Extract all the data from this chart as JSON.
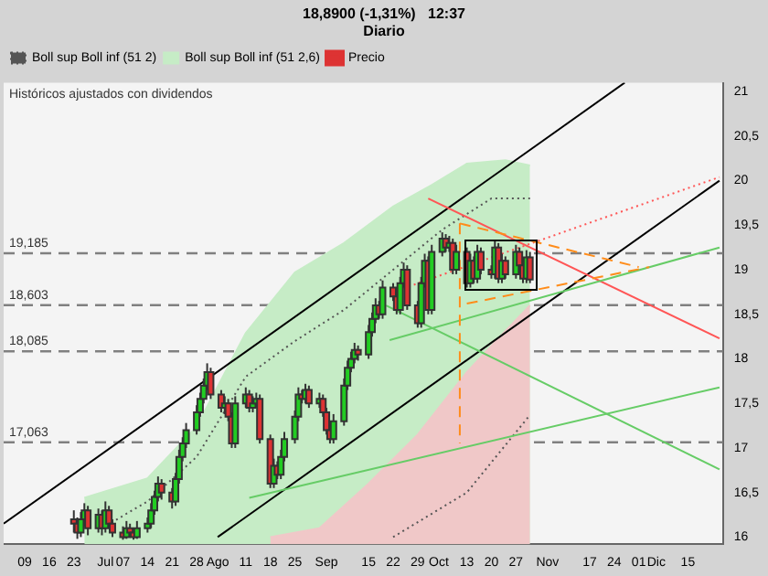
{
  "chart_data": {
    "type": "candlestick",
    "title": "18,8900 (-1,31%)   12:37",
    "subtitle": "Diario",
    "annotations": [
      "Históricos ajustados con dividendos"
    ],
    "legend": "top left",
    "grid": false,
    "xlim": [
      "--06-03",
      "--12-25"
    ],
    "xticks": [
      {
        "value": "--06-09",
        "label": "09"
      },
      {
        "value": "--06-16",
        "label": "16"
      },
      {
        "value": "--06-23",
        "label": "23"
      },
      {
        "value": "--07-02",
        "label": "Jul"
      },
      {
        "value": "--07-07",
        "label": "07"
      },
      {
        "value": "--07-14",
        "label": "14"
      },
      {
        "value": "--07-21",
        "label": "21"
      },
      {
        "value": "--07-28",
        "label": "28"
      },
      {
        "value": "--08-03",
        "label": "Ago"
      },
      {
        "value": "--08-11",
        "label": "11"
      },
      {
        "value": "--08-18",
        "label": "18"
      },
      {
        "value": "--08-25",
        "label": "25"
      },
      {
        "value": "--09-03",
        "label": "Sep"
      },
      {
        "value": "--09-15",
        "label": "15"
      },
      {
        "value": "--09-22",
        "label": "22"
      },
      {
        "value": "--09-29",
        "label": "29"
      },
      {
        "value": "--10-05",
        "label": "Oct"
      },
      {
        "value": "--10-13",
        "label": "13"
      },
      {
        "value": "--10-20",
        "label": "20"
      },
      {
        "value": "--10-27",
        "label": "27"
      },
      {
        "value": "--11-05",
        "label": "Nov"
      },
      {
        "value": "--11-17",
        "label": "17"
      },
      {
        "value": "--11-24",
        "label": "24"
      },
      {
        "value": "--12-01",
        "label": "01"
      },
      {
        "value": "--12-06",
        "label": "Dic"
      },
      {
        "value": "--12-15",
        "label": "15"
      }
    ],
    "ylim": [
      15.92,
      21.1
    ],
    "yticks": [
      16,
      {
        "value": 16.5,
        "label": "16,5"
      },
      17,
      {
        "value": 17.5,
        "label": "17,5"
      },
      18,
      {
        "value": 18.5,
        "label": "18,5"
      },
      19,
      {
        "value": 19.5,
        "label": "19,5"
      },
      20,
      {
        "value": 20.5,
        "label": "20,5"
      },
      21
    ],
    "ref_lines": [
      {
        "axis": "y",
        "value": 19.185,
        "label": "19,185",
        "color": "#808080",
        "line_style": "dashed"
      },
      {
        "axis": "y",
        "value": 18.603,
        "label": "18,603",
        "color": "#808080",
        "line_style": "dashed"
      },
      {
        "axis": "y",
        "value": 18.085,
        "label": "18,085",
        "color": "#808080",
        "line_style": "dashed"
      },
      {
        "axis": "y",
        "value": 17.063,
        "label": "17,063",
        "color": "#808080",
        "line_style": "dashed"
      }
    ],
    "series": [
      {
        "name": "Precio",
        "x": [
          "--06-23",
          "--06-24",
          "--06-25",
          "--06-26",
          "--06-27",
          "--06-30",
          "--07-01",
          "--07-02",
          "--07-03",
          "--07-04",
          "--07-07",
          "--07-08",
          "--07-09",
          "--07-10",
          "--07-11",
          "--07-14",
          "--07-15",
          "--07-16",
          "--07-17",
          "--07-18",
          "--07-21",
          "--07-22",
          "--07-23",
          "--07-24",
          "--07-25",
          "--07-28",
          "--07-29",
          "--07-30",
          "--07-31",
          "--08-01",
          "--08-04",
          "--08-05",
          "--08-06",
          "--08-07",
          "--08-08",
          "--08-11",
          "--08-12",
          "--08-13",
          "--08-14",
          "--08-15",
          "--08-18",
          "--08-19",
          "--08-20",
          "--08-21",
          "--08-22",
          "--08-25",
          "--08-26",
          "--08-27",
          "--08-28",
          "--08-29",
          "--09-01",
          "--09-02",
          "--09-03",
          "--09-04",
          "--09-05",
          "--09-08",
          "--09-09",
          "--09-10",
          "--09-11",
          "--09-12",
          "--09-15",
          "--09-16",
          "--09-17",
          "--09-18",
          "--09-19",
          "--09-22",
          "--09-23",
          "--09-24",
          "--09-25",
          "--09-26",
          "--09-29",
          "--09-30",
          "--10-01",
          "--10-02",
          "--10-03",
          "--10-06",
          "--10-07",
          "--10-08",
          "--10-09",
          "--10-10",
          "--10-13",
          "--10-14",
          "--10-15",
          "--10-16",
          "--10-17",
          "--10-20",
          "--10-21",
          "--10-22",
          "--10-23",
          "--10-24",
          "--10-27",
          "--10-28",
          "--10-29",
          "--10-30",
          "--10-31"
        ],
        "ohlc": [
          [
            16.2,
            16.3,
            16.05,
            16.15
          ],
          [
            16.15,
            16.22,
            15.98,
            16.05
          ],
          [
            16.05,
            16.28,
            16.0,
            16.2
          ],
          [
            16.2,
            16.38,
            16.12,
            16.3
          ],
          [
            16.3,
            16.35,
            16.02,
            16.1
          ],
          [
            16.1,
            16.32,
            16.05,
            16.25
          ],
          [
            16.25,
            16.3,
            16.02,
            16.1
          ],
          [
            16.1,
            16.4,
            16.05,
            16.3
          ],
          [
            16.3,
            16.35,
            16.1,
            16.15
          ],
          [
            16.15,
            16.2,
            16.0,
            16.05
          ],
          [
            16.05,
            16.12,
            15.97,
            16.0
          ],
          [
            16.0,
            16.18,
            15.98,
            16.1
          ],
          [
            16.1,
            16.15,
            16.0,
            16.05
          ],
          [
            16.05,
            16.1,
            15.97,
            16.0
          ],
          [
            16.0,
            16.18,
            15.98,
            16.1
          ],
          [
            16.1,
            16.22,
            16.05,
            16.15
          ],
          [
            16.15,
            16.38,
            16.1,
            16.3
          ],
          [
            16.3,
            16.52,
            16.25,
            16.45
          ],
          [
            16.45,
            16.68,
            16.4,
            16.6
          ],
          [
            16.6,
            16.65,
            16.42,
            16.5
          ],
          [
            16.5,
            16.55,
            16.32,
            16.4
          ],
          [
            16.4,
            16.72,
            16.35,
            16.65
          ],
          [
            16.65,
            16.98,
            16.6,
            16.9
          ],
          [
            16.9,
            17.12,
            16.85,
            17.05
          ],
          [
            17.05,
            17.28,
            17.0,
            17.2
          ],
          [
            17.2,
            17.48,
            17.15,
            17.4
          ],
          [
            17.4,
            17.62,
            17.35,
            17.55
          ],
          [
            17.55,
            17.78,
            17.5,
            17.7
          ],
          [
            17.7,
            17.95,
            17.65,
            17.85
          ],
          [
            17.85,
            17.9,
            17.55,
            17.6
          ],
          [
            17.6,
            17.65,
            17.4,
            17.45
          ],
          [
            17.45,
            17.58,
            17.38,
            17.5
          ],
          [
            17.5,
            17.55,
            17.3,
            17.35
          ],
          [
            17.35,
            17.4,
            17.0,
            17.05
          ],
          [
            17.05,
            17.58,
            17.0,
            17.5
          ],
          [
            17.5,
            17.68,
            17.45,
            17.6
          ],
          [
            17.6,
            17.65,
            17.4,
            17.45
          ],
          [
            17.45,
            17.58,
            17.4,
            17.5
          ],
          [
            17.5,
            17.62,
            17.45,
            17.55
          ],
          [
            17.55,
            17.6,
            17.05,
            17.1
          ],
          [
            17.1,
            17.15,
            16.55,
            16.6
          ],
          [
            16.6,
            16.88,
            16.55,
            16.8
          ],
          [
            16.8,
            16.85,
            16.65,
            16.7
          ],
          [
            16.7,
            16.98,
            16.65,
            16.9
          ],
          [
            16.9,
            17.18,
            16.85,
            17.1
          ],
          [
            17.1,
            17.42,
            17.05,
            17.35
          ],
          [
            17.35,
            17.68,
            17.3,
            17.6
          ],
          [
            17.6,
            17.65,
            17.5,
            17.55
          ],
          [
            17.55,
            17.72,
            17.5,
            17.65
          ],
          [
            17.65,
            17.7,
            17.45,
            17.5
          ],
          [
            17.5,
            17.62,
            17.45,
            17.55
          ],
          [
            17.55,
            17.6,
            17.35,
            17.4
          ],
          [
            17.4,
            17.45,
            17.15,
            17.2
          ],
          [
            17.2,
            17.25,
            17.05,
            17.1
          ],
          [
            17.1,
            17.38,
            17.05,
            17.3
          ],
          [
            17.3,
            17.78,
            17.25,
            17.7
          ],
          [
            17.7,
            17.98,
            17.65,
            17.9
          ],
          [
            17.9,
            18.08,
            17.85,
            18.0
          ],
          [
            18.0,
            18.18,
            17.95,
            18.1
          ],
          [
            18.1,
            18.15,
            17.98,
            18.05
          ],
          [
            18.05,
            18.38,
            18.0,
            18.3
          ],
          [
            18.3,
            18.52,
            18.25,
            18.45
          ],
          [
            18.45,
            18.68,
            18.4,
            18.6
          ],
          [
            18.6,
            18.65,
            18.45,
            18.5
          ],
          [
            18.5,
            18.88,
            18.45,
            18.8
          ],
          [
            18.8,
            18.85,
            18.65,
            18.7
          ],
          [
            18.7,
            18.75,
            18.5,
            18.55
          ],
          [
            18.55,
            18.92,
            18.5,
            18.85
          ],
          [
            18.85,
            19.08,
            18.8,
            19.0
          ],
          [
            19.0,
            19.05,
            18.55,
            18.6
          ],
          [
            18.6,
            18.65,
            18.35,
            18.4
          ],
          [
            18.4,
            18.92,
            18.35,
            18.85
          ],
          [
            18.85,
            19.18,
            18.8,
            19.1
          ],
          [
            19.1,
            19.15,
            18.5,
            18.55
          ],
          [
            18.55,
            19.28,
            18.5,
            19.2
          ],
          [
            19.2,
            19.42,
            19.15,
            19.35
          ],
          [
            19.35,
            19.4,
            19.2,
            19.25
          ],
          [
            19.25,
            19.38,
            19.2,
            19.3
          ],
          [
            19.3,
            19.35,
            18.95,
            19.0
          ],
          [
            19.0,
            19.28,
            18.95,
            19.2
          ],
          [
            19.2,
            19.25,
            18.8,
            18.85
          ],
          [
            18.85,
            19.18,
            18.8,
            19.1
          ],
          [
            19.1,
            19.15,
            18.85,
            18.9
          ],
          [
            18.9,
            19.28,
            18.85,
            19.2
          ],
          [
            19.2,
            19.25,
            18.95,
            19.0
          ],
          [
            19.0,
            19.05,
            18.9,
            18.95
          ],
          [
            18.95,
            19.32,
            18.9,
            19.25
          ],
          [
            19.25,
            19.3,
            18.85,
            18.9
          ],
          [
            18.9,
            19.18,
            18.85,
            19.1
          ],
          [
            19.1,
            19.15,
            18.9,
            18.95
          ],
          [
            18.95,
            19.28,
            18.9,
            19.2
          ],
          [
            19.2,
            19.25,
            19.0,
            19.05
          ],
          [
            19.05,
            19.1,
            18.85,
            18.9
          ],
          [
            18.9,
            19.22,
            18.85,
            19.14
          ],
          [
            19.14,
            19.2,
            18.85,
            18.89
          ]
        ],
        "colors": [
          "#dd3333",
          "#dd3333",
          "#22cc22",
          "#22cc22",
          "#dd3333",
          "#22cc22",
          "#dd3333",
          "#22cc22",
          "#dd3333",
          "#dd3333",
          "#dd3333",
          "#22cc22",
          "#dd3333",
          "#dd3333",
          "#22cc22",
          "#22cc22",
          "#22cc22",
          "#22cc22",
          "#22cc22",
          "#dd3333",
          "#dd3333",
          "#22cc22",
          "#22cc22",
          "#22cc22",
          "#22cc22",
          "#22cc22",
          "#22cc22",
          "#22cc22",
          "#22cc22",
          "#dd3333",
          "#dd3333",
          "#22cc22",
          "#dd3333",
          "#dd3333",
          "#22cc22",
          "#22cc22",
          "#dd3333",
          "#22cc22",
          "#22cc22",
          "#dd3333",
          "#dd3333",
          "#22cc22",
          "#dd3333",
          "#22cc22",
          "#22cc22",
          "#22cc22",
          "#22cc22",
          "#dd3333",
          "#22cc22",
          "#dd3333",
          "#22cc22",
          "#dd3333",
          "#dd3333",
          "#dd3333",
          "#22cc22",
          "#22cc22",
          "#22cc22",
          "#22cc22",
          "#22cc22",
          "#dd3333",
          "#22cc22",
          "#22cc22",
          "#22cc22",
          "#dd3333",
          "#22cc22",
          "#dd3333",
          "#dd3333",
          "#22cc22",
          "#22cc22",
          "#dd3333",
          "#dd3333",
          "#22cc22",
          "#22cc22",
          "#dd3333",
          "#22cc22",
          "#22cc22",
          "#dd3333",
          "#22cc22",
          "#dd3333",
          "#22cc22",
          "#dd3333",
          "#22cc22",
          "#dd3333",
          "#22cc22",
          "#dd3333",
          "#dd3333",
          "#22cc22",
          "#dd3333",
          "#22cc22",
          "#dd3333",
          "#22cc22",
          "#dd3333",
          "#dd3333",
          "#22cc22",
          "#dd3333"
        ]
      },
      {
        "type": "area",
        "name": "Boll sup Boll inf (51 2,6)",
        "color": "#c6ecc6",
        "x": [
          "--06-26",
          "--07-14",
          "--07-28",
          "--08-11",
          "--08-25",
          "--09-08",
          "--09-22",
          "--10-03",
          "--10-13",
          "--10-24",
          "--10-31"
        ],
        "values": [
          16.44,
          16.66,
          17.24,
          18.29,
          18.97,
          19.3,
          19.71,
          19.95,
          20.19,
          20.23,
          20.17
        ]
      },
      {
        "type": "area",
        "color": "#f0c8c8",
        "x": [
          "--08-18",
          "--09-01",
          "--09-15",
          "--09-29",
          "--10-13",
          "--10-22",
          "--10-31"
        ],
        "values": [
          16.0,
          16.1,
          16.6,
          17.15,
          17.85,
          18.23,
          18.6
        ]
      },
      {
        "type": "line",
        "name": "Boll sup Boll inf (51 2)",
        "color": "#555555",
        "line_style": "dotted",
        "x": [
          "--07-01",
          "--07-14",
          "--07-28",
          "--08-11",
          "--08-25",
          "--09-08",
          "--09-22",
          "--10-06",
          "--10-20",
          "--10-31"
        ],
        "values": [
          16.1,
          16.4,
          16.9,
          17.8,
          18.2,
          18.55,
          19.0,
          19.45,
          19.8,
          19.8
        ]
      },
      {
        "type": "line",
        "color": "#555555",
        "line_style": "dotted",
        "x": [
          "--09-22",
          "--10-13",
          "--10-31"
        ],
        "values": [
          16.0,
          16.5,
          17.37
        ]
      },
      {
        "type": "line",
        "color": "#000000",
        "x": [
          "--06-03",
          "--11-27"
        ],
        "values": [
          16.15,
          21.1
        ]
      },
      {
        "type": "line",
        "color": "#000000",
        "x": [
          "--08-03",
          "--12-24"
        ],
        "values": [
          16.0,
          20.0
        ]
      },
      {
        "type": "line",
        "color": "#ff5555",
        "x": [
          "--10-02",
          "--12-24"
        ],
        "values": [
          19.8,
          18.23
        ]
      },
      {
        "type": "line",
        "color": "#ff5555",
        "line_style": "dotted",
        "x": [
          "--09-22",
          "--12-24"
        ],
        "values": [
          18.75,
          20.04
        ]
      },
      {
        "type": "line",
        "color": "#66cc66",
        "x": [
          "--08-12",
          "--12-24"
        ],
        "values": [
          16.44,
          17.68
        ]
      },
      {
        "type": "line",
        "color": "#66cc66",
        "x": [
          "--09-21",
          "--12-24"
        ],
        "values": [
          18.21,
          19.25
        ]
      },
      {
        "type": "line",
        "color": "#66cc66",
        "x": [
          "--09-20",
          "--12-24"
        ],
        "values": [
          18.6,
          16.76
        ]
      },
      {
        "type": "line",
        "color": "#ff8c1a",
        "line_style": "dashed",
        "x": [
          "--10-11",
          "--10-11"
        ],
        "values": [
          19.52,
          17.05
        ]
      },
      {
        "type": "line",
        "color": "#ff8c1a",
        "line_style": "dashed",
        "x": [
          "--10-11",
          "--12-01"
        ],
        "values": [
          19.52,
          19.03
        ]
      },
      {
        "type": "line",
        "color": "#ff8c1a",
        "line_style": "dashed",
        "x": [
          "--10-13",
          "--12-04"
        ],
        "values": [
          18.62,
          19.03
        ]
      }
    ]
  }
}
